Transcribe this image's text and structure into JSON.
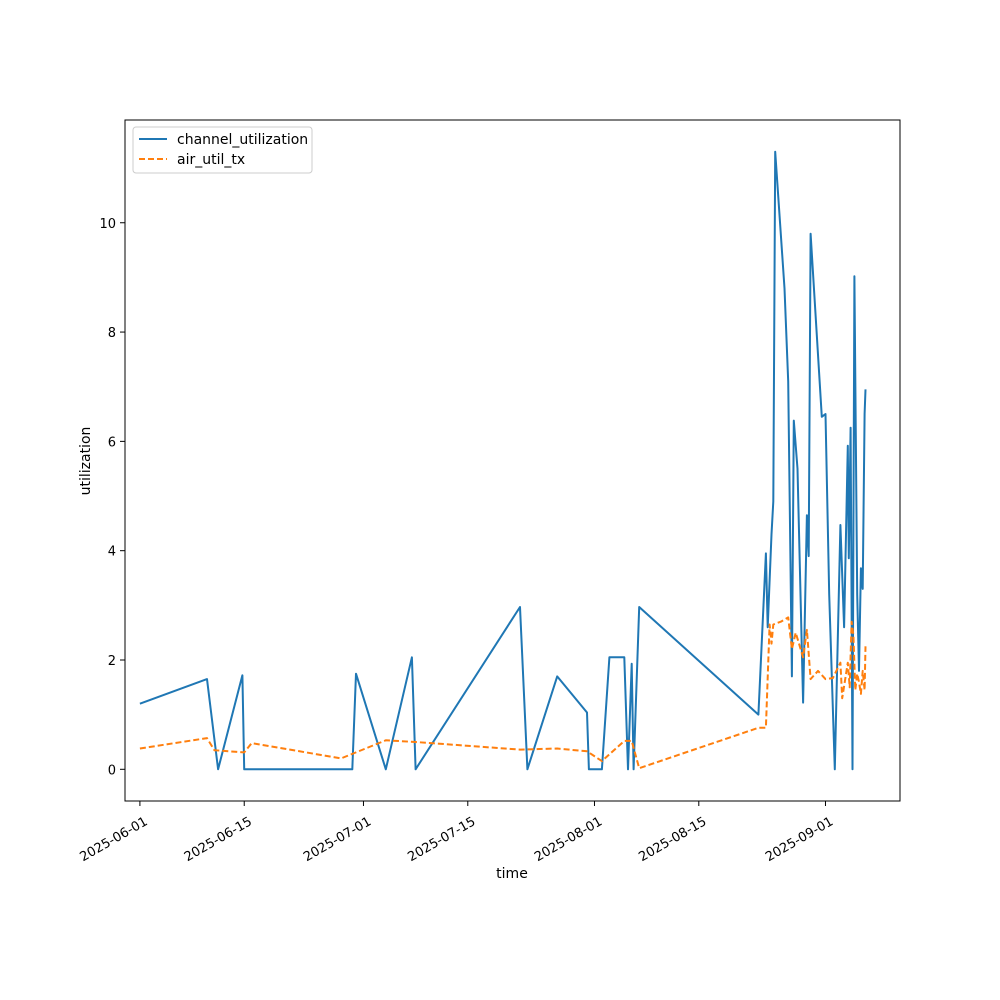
{
  "chart_data": {
    "type": "line",
    "title": "",
    "xlabel": "time",
    "ylabel": "utilization",
    "x_type": "date",
    "xlim": [
      "2025-05-30",
      "2025-09-11"
    ],
    "ylim": [
      -0.58,
      11.88
    ],
    "x_ticks": [
      "2025-06-01",
      "2025-06-15",
      "2025-07-01",
      "2025-07-15",
      "2025-08-01",
      "2025-08-15",
      "2025-09-01"
    ],
    "y_ticks": [
      0,
      2,
      4,
      6,
      8,
      10
    ],
    "grid": false,
    "legend_position": "top-left",
    "series": [
      {
        "name": "channel_utilization",
        "color": "#1f77b4",
        "style": "solid",
        "points": [
          [
            "2025-06-01",
            1.2
          ],
          [
            "2025-06-10",
            1.65
          ],
          [
            "2025-06-11 12:00",
            0.0
          ],
          [
            "2025-06-14 18:00",
            1.72
          ],
          [
            "2025-06-15",
            0.0
          ],
          [
            "2025-06-28",
            0.0
          ],
          [
            "2025-06-29 12:00",
            0.0
          ],
          [
            "2025-06-30",
            1.75
          ],
          [
            "2025-07-04",
            0.0
          ],
          [
            "2025-07-07 12:00",
            2.05
          ],
          [
            "2025-07-08",
            0.0
          ],
          [
            "2025-07-22",
            2.97
          ],
          [
            "2025-07-23",
            0.0
          ],
          [
            "2025-07-27",
            1.7
          ],
          [
            "2025-07-31",
            1.04
          ],
          [
            "2025-07-31 06:00",
            0.0
          ],
          [
            "2025-08-02",
            0.0
          ],
          [
            "2025-08-03",
            2.05
          ],
          [
            "2025-08-05",
            2.05
          ],
          [
            "2025-08-05 12:00",
            0.0
          ],
          [
            "2025-08-06",
            1.93
          ],
          [
            "2025-08-06 06:00",
            0.0
          ],
          [
            "2025-08-07",
            2.97
          ],
          [
            "2025-08-23",
            1.0
          ],
          [
            "2025-08-24",
            3.95
          ],
          [
            "2025-08-24 06:00",
            2.6
          ],
          [
            "2025-08-24 18:00",
            4.3
          ],
          [
            "2025-08-25",
            4.9
          ],
          [
            "2025-08-25 06:00",
            11.3
          ],
          [
            "2025-08-26 12:00",
            8.8
          ],
          [
            "2025-08-27",
            7.1
          ],
          [
            "2025-08-27 12:00",
            1.7
          ],
          [
            "2025-08-27 18:00",
            6.38
          ],
          [
            "2025-08-28 06:00",
            5.5
          ],
          [
            "2025-08-29",
            1.22
          ],
          [
            "2025-08-29 12:00",
            4.65
          ],
          [
            "2025-08-29 18:00",
            3.9
          ],
          [
            "2025-08-30",
            9.8
          ],
          [
            "2025-08-31 12:00",
            6.45
          ],
          [
            "2025-09-01",
            6.5
          ],
          [
            "2025-09-01 12:00",
            3.2
          ],
          [
            "2025-09-02 06:00",
            0.0
          ],
          [
            "2025-09-03",
            4.47
          ],
          [
            "2025-09-03 12:00",
            2.6
          ],
          [
            "2025-09-04",
            5.92
          ],
          [
            "2025-09-04 03:00",
            3.86
          ],
          [
            "2025-09-04 09:00",
            6.25
          ],
          [
            "2025-09-04 15:00",
            0.0
          ],
          [
            "2025-09-04 21:00",
            9.02
          ],
          [
            "2025-09-05 06:00",
            3.2
          ],
          [
            "2025-09-05 12:00",
            1.8
          ],
          [
            "2025-09-05 18:00",
            3.68
          ],
          [
            "2025-09-06",
            3.3
          ],
          [
            "2025-09-06 06:00",
            6.5
          ],
          [
            "2025-09-06 09:00",
            6.95
          ]
        ]
      },
      {
        "name": "air_util_tx",
        "color": "#ff7f0e",
        "style": "dashed",
        "points": [
          [
            "2025-06-01",
            0.38
          ],
          [
            "2025-06-10",
            0.57
          ],
          [
            "2025-06-11",
            0.35
          ],
          [
            "2025-06-15",
            0.31
          ],
          [
            "2025-06-16",
            0.48
          ],
          [
            "2025-06-28",
            0.2
          ],
          [
            "2025-07-04",
            0.53
          ],
          [
            "2025-07-08",
            0.5
          ],
          [
            "2025-07-22",
            0.36
          ],
          [
            "2025-07-27",
            0.38
          ],
          [
            "2025-07-31",
            0.33
          ],
          [
            "2025-08-02",
            0.15
          ],
          [
            "2025-08-05",
            0.52
          ],
          [
            "2025-08-06",
            0.52
          ],
          [
            "2025-08-07",
            0.02
          ],
          [
            "2025-08-23",
            0.76
          ],
          [
            "2025-08-24",
            0.76
          ],
          [
            "2025-08-24 12:00",
            2.65
          ],
          [
            "2025-08-24 18:00",
            2.3
          ],
          [
            "2025-08-25",
            2.65
          ],
          [
            "2025-08-26",
            2.7
          ],
          [
            "2025-08-27",
            2.78
          ],
          [
            "2025-08-27 12:00",
            2.2
          ],
          [
            "2025-08-28",
            2.5
          ],
          [
            "2025-08-29",
            2.05
          ],
          [
            "2025-08-29 12:00",
            2.55
          ],
          [
            "2025-08-30",
            1.65
          ],
          [
            "2025-08-31",
            1.8
          ],
          [
            "2025-09-01",
            1.65
          ],
          [
            "2025-09-02",
            1.67
          ],
          [
            "2025-09-03",
            1.95
          ],
          [
            "2025-09-03 06:00",
            1.3
          ],
          [
            "2025-09-04",
            1.95
          ],
          [
            "2025-09-04 06:00",
            1.5
          ],
          [
            "2025-09-04 12:00",
            2.7
          ],
          [
            "2025-09-04 18:00",
            2.45
          ],
          [
            "2025-09-05",
            1.45
          ],
          [
            "2025-09-05 06:00",
            1.75
          ],
          [
            "2025-09-05 12:00",
            1.6
          ],
          [
            "2025-09-05 18:00",
            1.38
          ],
          [
            "2025-09-06",
            1.8
          ],
          [
            "2025-09-06 06:00",
            1.45
          ],
          [
            "2025-09-06 09:00",
            2.25
          ]
        ]
      }
    ]
  }
}
